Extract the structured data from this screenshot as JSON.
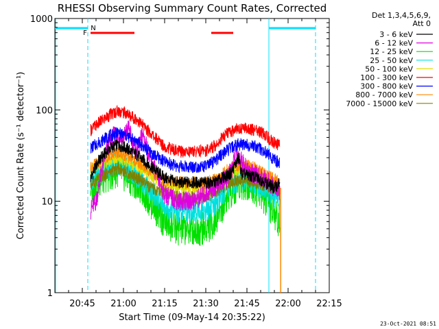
{
  "chart_data": {
    "type": "line",
    "title": "RHESSI Observing Summary Count Rates, Corrected",
    "xlabel": "Start Time (09-May-14 20:35:22)",
    "ylabel": "Corrected Count Rate (s⁻¹ detector⁻¹)",
    "yscale": "log",
    "ylim": [
      1,
      1000
    ],
    "xlim_minutes": [
      0,
      100
    ],
    "x_ticks": [
      {
        "t": 10,
        "label": "20:45"
      },
      {
        "t": 25,
        "label": "21:00"
      },
      {
        "t": 40,
        "label": "21:15"
      },
      {
        "t": 55,
        "label": "21:30"
      },
      {
        "t": 70,
        "label": "21:45"
      },
      {
        "t": 85,
        "label": "22:00"
      },
      {
        "t": 100,
        "label": "22:15"
      }
    ],
    "y_ticks": [
      {
        "v": 1,
        "label": "1"
      },
      {
        "v": 10,
        "label": "10"
      },
      {
        "v": 100,
        "label": "100"
      },
      {
        "v": 1000,
        "label": "1000"
      }
    ],
    "legend_header": [
      "Det 1,3,4,5,6,9,",
      "Att 0"
    ],
    "legend_position": "right",
    "series": [
      {
        "name": "3 - 6 keV",
        "color": "#000000",
        "times": [
          13,
          16,
          20,
          23,
          26,
          30,
          35,
          40,
          45,
          50,
          55,
          58,
          61,
          64,
          67,
          68,
          71,
          74,
          77,
          80,
          82
        ],
        "values": [
          18,
          28,
          38,
          42,
          38,
          32,
          24,
          18,
          16,
          16,
          16,
          16,
          18,
          20,
          30,
          20,
          19,
          18,
          16,
          14,
          16
        ]
      },
      {
        "name": "6 - 12 keV",
        "color": "#e000e0",
        "times": [
          13,
          15,
          18,
          20,
          22,
          25,
          27,
          28,
          30,
          32,
          35,
          40,
          45,
          50,
          55,
          58,
          61,
          63,
          65,
          66,
          68,
          70,
          72,
          75,
          78,
          80,
          82
        ],
        "values": [
          8,
          10,
          30,
          45,
          55,
          50,
          65,
          45,
          35,
          55,
          28,
          12,
          10,
          10,
          12,
          14,
          16,
          18,
          25,
          35,
          28,
          22,
          20,
          18,
          16,
          14,
          13
        ]
      },
      {
        "name": "12 - 25 keV",
        "color": "#00e000",
        "times": [
          13,
          16,
          20,
          23,
          26,
          30,
          35,
          40,
          45,
          50,
          55,
          58,
          61,
          64,
          67,
          70,
          73,
          76,
          79,
          82
        ],
        "values": [
          14,
          17,
          20,
          22,
          19,
          16,
          10,
          6,
          5,
          5,
          5,
          6,
          9,
          13,
          16,
          16,
          14,
          11,
          8,
          6
        ]
      },
      {
        "name": "25 - 50 keV",
        "color": "#00e0e0",
        "times": [
          13,
          16,
          20,
          23,
          26,
          30,
          35,
          40,
          45,
          50,
          55,
          58,
          61,
          64,
          67,
          70,
          73,
          76,
          79,
          82
        ],
        "values": [
          18,
          21,
          24,
          26,
          23,
          19,
          13,
          9,
          8,
          8,
          8,
          9,
          12,
          15,
          18,
          18,
          16,
          14,
          12,
          11
        ]
      },
      {
        "name": "50 - 100 keV",
        "color": "#e0e000",
        "times": [
          13,
          16,
          20,
          23,
          26,
          30,
          35,
          40,
          45,
          50,
          55,
          58,
          61,
          64,
          67,
          70,
          73,
          76,
          79,
          82
        ],
        "values": [
          22,
          25,
          28,
          30,
          28,
          24,
          19,
          15,
          14,
          14,
          14,
          15,
          17,
          19,
          22,
          22,
          20,
          18,
          16,
          15
        ]
      },
      {
        "name": "100 - 300 keV",
        "color": "#ff0000",
        "times": [
          13,
          16,
          20,
          23,
          26,
          30,
          35,
          40,
          45,
          50,
          55,
          58,
          61,
          64,
          67,
          70,
          73,
          76,
          79,
          82
        ],
        "values": [
          60,
          72,
          88,
          98,
          92,
          78,
          55,
          40,
          35,
          35,
          36,
          40,
          50,
          58,
          63,
          63,
          60,
          55,
          46,
          40
        ]
      },
      {
        "name": "300 - 800 keV",
        "color": "#0000ff",
        "times": [
          13,
          16,
          20,
          23,
          26,
          30,
          35,
          40,
          45,
          50,
          55,
          58,
          61,
          64,
          67,
          70,
          73,
          76,
          79,
          82
        ],
        "values": [
          38,
          44,
          52,
          56,
          52,
          45,
          34,
          27,
          24,
          24,
          24,
          27,
          33,
          38,
          42,
          42,
          40,
          36,
          30,
          26
        ]
      },
      {
        "name": "800 - 7000 keV",
        "color": "#ff8800",
        "times": [
          13,
          16,
          20,
          23,
          26,
          30,
          35,
          40,
          45,
          50,
          55,
          58,
          61,
          64,
          67,
          70,
          73,
          76,
          79,
          82
        ],
        "values": [
          23,
          27,
          32,
          34,
          32,
          27,
          21,
          17,
          16,
          16,
          16,
          17,
          20,
          23,
          25,
          25,
          23,
          20,
          18,
          16
        ]
      },
      {
        "name": "7000 - 15000 keV",
        "color": "#808000",
        "times": [
          13,
          16,
          20,
          23,
          26,
          30,
          35,
          40,
          45,
          50,
          55,
          58,
          61,
          64,
          67,
          70,
          73,
          76,
          79,
          82
        ],
        "values": [
          15,
          18,
          21,
          23,
          21,
          18,
          14,
          12,
          11,
          11,
          11,
          12,
          14,
          16,
          17,
          17,
          16,
          15,
          14,
          13
        ]
      }
    ],
    "annotations": {
      "night_bars": [
        [
          0,
          12
        ],
        [
          78,
          95
        ]
      ],
      "night_label": "N",
      "night_marker_times": [
        12,
        78,
        95
      ],
      "flare_bars": [
        [
          13,
          29
        ],
        [
          57,
          65
        ]
      ],
      "flare_label": "F",
      "drop_time": 82.3
    }
  },
  "footer": {
    "timestamp": "23-Oct-2021 08:51"
  }
}
